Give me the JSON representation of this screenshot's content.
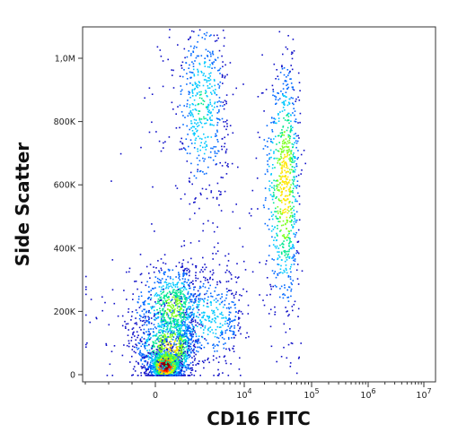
{
  "chart_data": {
    "type": "scatter",
    "subtype": "flow-cytometry-density-dot-plot",
    "xlabel": "CD16 FITC",
    "ylabel": "Side Scatter",
    "x_scale": "biexponential",
    "y_scale": "linear",
    "ylim": [
      0,
      1100000
    ],
    "x_ticks": [
      {
        "label": "0",
        "value": 0
      },
      {
        "label": "10",
        "sup": "4",
        "value": 10000
      },
      {
        "label": "10",
        "sup": "5",
        "value": 100000
      },
      {
        "label": "10",
        "sup": "6",
        "value": 1000000
      },
      {
        "label": "10",
        "sup": "7",
        "value": 10000000
      }
    ],
    "y_ticks": [
      {
        "label": "0",
        "value": 0
      },
      {
        "label": "200K",
        "value": 200000
      },
      {
        "label": "400K",
        "value": 400000
      },
      {
        "label": "600K",
        "value": 600000
      },
      {
        "label": "800K",
        "value": 800000
      },
      {
        "label": "1,0M",
        "value": 1000000
      }
    ],
    "grid": false,
    "legend": "none",
    "colormap": [
      "#1010c8",
      "#0068ff",
      "#00c8ff",
      "#00e890",
      "#7cff1e",
      "#ffe600",
      "#ff7800",
      "#ff0000",
      "#8b0000"
    ],
    "populations": [
      {
        "x_center": 500,
        "y_center": 30000,
        "x_spread": 400,
        "y_spread": 25000,
        "peak_density": 1.0
      },
      {
        "x_center": 800,
        "y_center": 90000,
        "x_spread": 900,
        "y_spread": 60000,
        "peak_density": 0.6
      },
      {
        "x_center": 900,
        "y_center": 215000,
        "x_spread": 1000,
        "y_spread": 70000,
        "peak_density": 0.5
      },
      {
        "x_center": 4000,
        "y_center": 180000,
        "x_spread": 3000,
        "y_spread": 80000,
        "peak_density": 0.3
      },
      {
        "x_center": 3500,
        "y_center": 850000,
        "x_spread": 1500,
        "y_spread": 160000,
        "peak_density": 0.35
      },
      {
        "x_center": 40000,
        "y_center": 600000,
        "x_spread": 12000,
        "y_spread": 200000,
        "peak_density": 0.65
      }
    ]
  }
}
